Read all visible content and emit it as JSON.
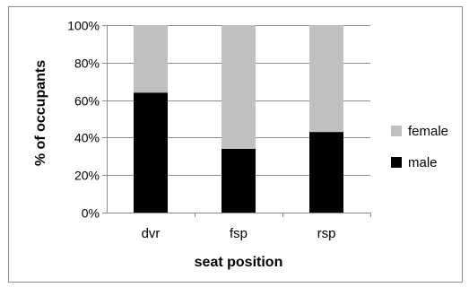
{
  "chart_data": {
    "type": "bar",
    "stacked": true,
    "percent_stacked": true,
    "categories": [
      "dvr",
      "fsp",
      "rsp"
    ],
    "series": [
      {
        "name": "male",
        "values": [
          64,
          34,
          43
        ],
        "color": "#000000"
      },
      {
        "name": "female",
        "values": [
          36,
          66,
          57
        ],
        "color": "#c0c0c0"
      }
    ],
    "xlabel": "seat position",
    "ylabel": "% of occupants",
    "ylim": [
      0,
      100
    ],
    "yticks": [
      0,
      20,
      40,
      60,
      80,
      100
    ],
    "ytick_labels": [
      "0%",
      "20%",
      "40%",
      "60%",
      "80%",
      "100%"
    ],
    "grid": true,
    "legend": {
      "placement": "right",
      "entries": [
        "female",
        "male"
      ]
    }
  }
}
